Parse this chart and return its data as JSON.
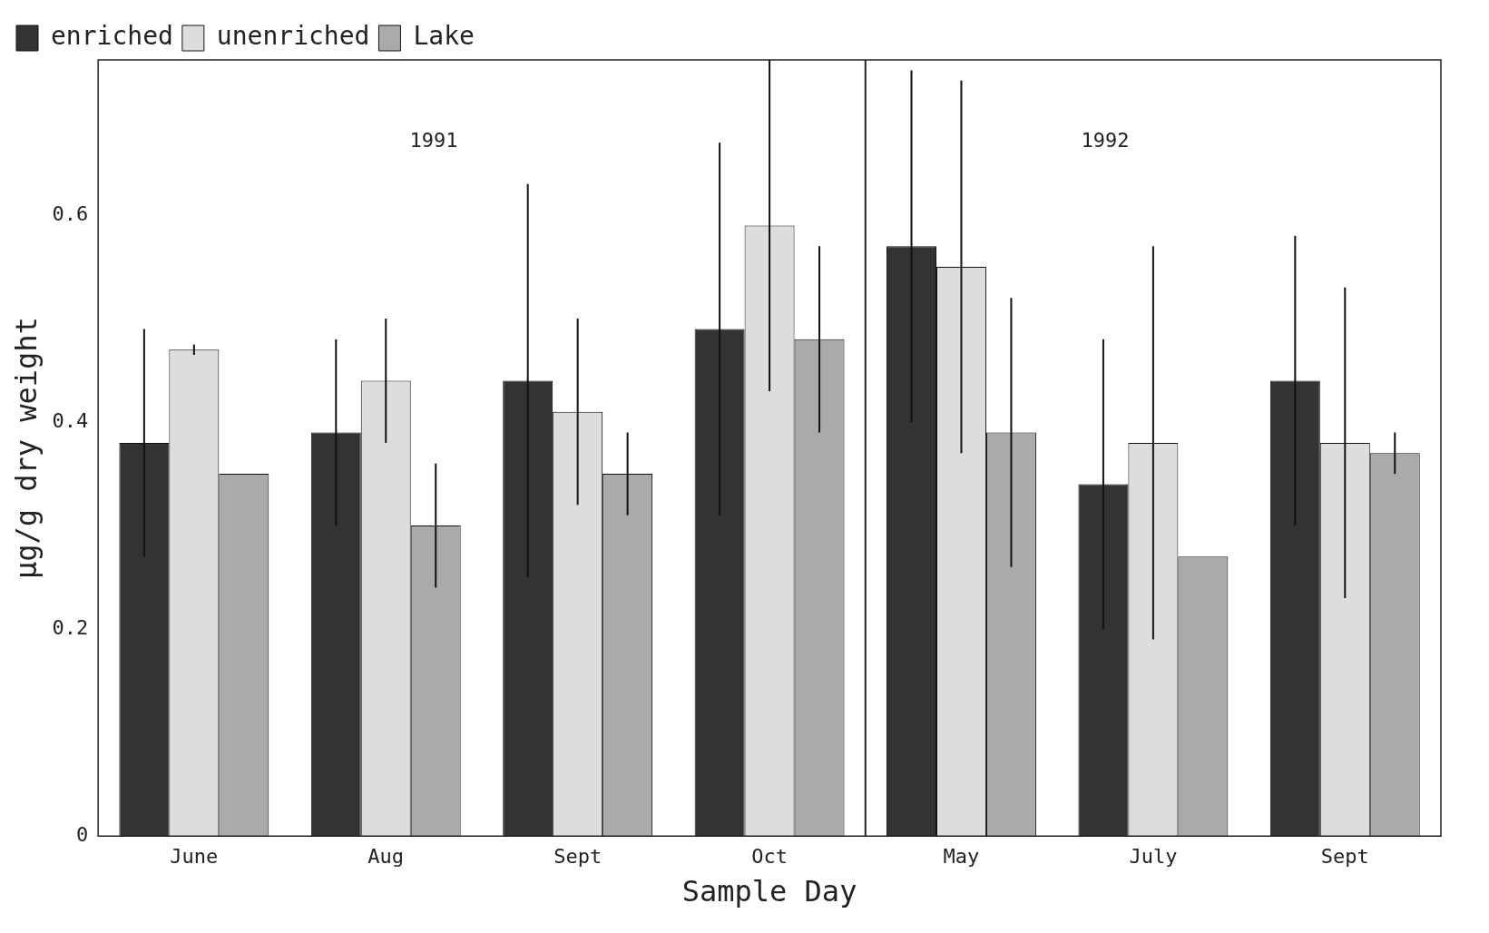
{
  "chart_data": {
    "type": "bar",
    "xlabel": "Sample Day",
    "ylabel": "µg/g dry weight",
    "categories": [
      "June",
      "Aug",
      "Sept",
      "Oct",
      "May",
      "July",
      "Sept"
    ],
    "series": [
      {
        "name": "enriched",
        "color": "#333333",
        "values": [
          0.38,
          0.39,
          0.44,
          0.49,
          0.57,
          0.34,
          0.44
        ],
        "errors": [
          0.11,
          0.09,
          0.19,
          0.18,
          0.17,
          0.14,
          0.14
        ]
      },
      {
        "name": "unenriched",
        "color": "#dddddd",
        "values": [
          0.47,
          0.44,
          0.41,
          0.59,
          0.55,
          0.38,
          0.38
        ],
        "errors": [
          0.005,
          0.06,
          0.09,
          0.16,
          0.18,
          0.19,
          0.15
        ]
      },
      {
        "name": "Lake",
        "color": "#aaaaaa",
        "values": [
          0.35,
          0.3,
          0.35,
          0.48,
          0.39,
          0.27,
          0.37
        ],
        "errors": [
          null,
          0.06,
          0.04,
          0.09,
          0.13,
          null,
          0.02
        ]
      }
    ],
    "ylim": [
      0,
      0.75
    ],
    "yticks": [
      0,
      0.2,
      0.4,
      0.6
    ],
    "grid": false,
    "legend": "top left",
    "annotations": [
      "1991",
      "1992"
    ]
  }
}
